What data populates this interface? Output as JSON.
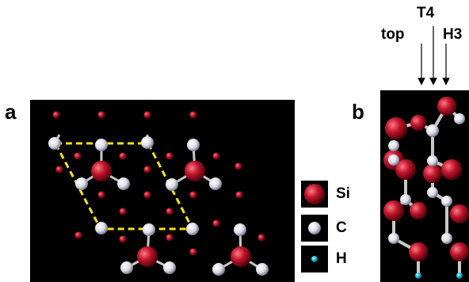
{
  "panels": {
    "a_label": "a",
    "b_label": "b"
  },
  "sites": {
    "top": "top",
    "t4": "T4",
    "h3": "H3"
  },
  "legend": {
    "si": "Si",
    "c": "C",
    "h": "H"
  },
  "colors": {
    "background_panel": "#000000",
    "si": "#c0152c",
    "c": "#e6e6f0",
    "h": "#19b8d8",
    "cell_outline": "#f5e21a",
    "bond": "#c9c9c9"
  }
}
